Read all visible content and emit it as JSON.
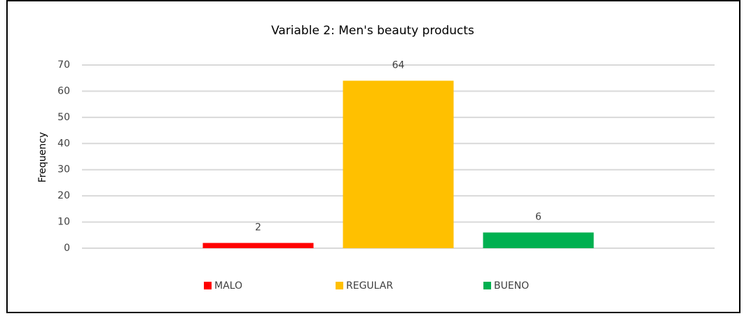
{
  "chart_data": {
    "type": "bar",
    "title": "Variable 2: Men's beauty products",
    "y_label": "Frequency",
    "categories": [
      null
    ],
    "series": [
      {
        "name": "MALO",
        "color": "#ff0000",
        "values": [
          2
        ]
      },
      {
        "name": "REGULAR",
        "color": "#ffc000",
        "values": [
          64
        ]
      },
      {
        "name": "BUENO",
        "color": "#00b050",
        "values": [
          6
        ]
      }
    ],
    "ylim": [
      0,
      70
    ],
    "yticks": [
      0,
      10,
      20,
      30,
      40,
      50,
      60,
      70
    ],
    "grid": true,
    "legend": "bottom",
    "data_labels": true
  }
}
